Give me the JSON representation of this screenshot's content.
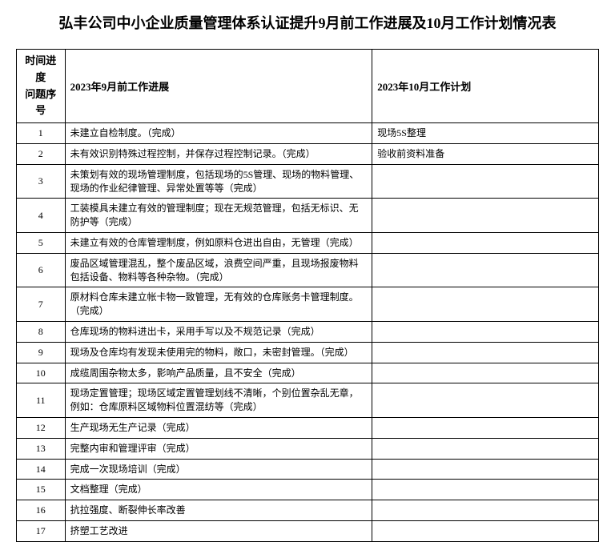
{
  "title": "弘丰公司中小企业质量管理体系认证提升9月前工作进展及10月工作计划情况表",
  "headers": {
    "index": "时间进度\n问题序号",
    "progress": "2023年9月前工作进展",
    "plan": "2023年10月工作计划"
  },
  "rows": [
    {
      "idx": "1",
      "progress": "未建立自检制度。（完成）",
      "plan": "现场5S整理"
    },
    {
      "idx": "2",
      "progress": "未有效识别特殊过程控制，并保存过程控制记录。（完成）",
      "plan": "验收前资料准备"
    },
    {
      "idx": "3",
      "progress": "未策划有效的现场管理制度，包括现场的5S管理、现场的物料管理、现场的作业纪律管理、异常处置等等（完成）",
      "plan": ""
    },
    {
      "idx": "4",
      "progress": "工装模具未建立有效的管理制度；现在无规范管理，包括无标识、无防护等（完成）",
      "plan": ""
    },
    {
      "idx": "5",
      "progress": "未建立有效的仓库管理制度，例如原料仓进出自由，无管理（完成）",
      "plan": ""
    },
    {
      "idx": "6",
      "progress": "废品区域管理混乱，整个废品区域，浪费空间严重，且现场报废物料包括设备、物料等各种杂物。（完成）",
      "plan": ""
    },
    {
      "idx": "7",
      "progress": "原材料仓库未建立帐卡物一致管理，无有效的仓库账务卡管理制度。（完成）",
      "plan": ""
    },
    {
      "idx": "8",
      "progress": "仓库现场的物料进出卡，采用手写以及不规范记录（完成）",
      "plan": ""
    },
    {
      "idx": "9",
      "progress": "现场及仓库均有发现未使用完的物料，敞口，未密封管理。（完成）",
      "plan": ""
    },
    {
      "idx": "10",
      "progress": "成缆周围杂物太多，影响产品质量，且不安全（完成）",
      "plan": ""
    },
    {
      "idx": "11",
      "progress": "现场定置管理；现场区域定置管理划线不清晰，个别位置杂乱无章，例如：仓库原料区域物料位置混纺等（完成）",
      "plan": ""
    },
    {
      "idx": "12",
      "progress": "生产现场无生产记录（完成）",
      "plan": ""
    },
    {
      "idx": "13",
      "progress": "完整内审和管理评审（完成）",
      "plan": ""
    },
    {
      "idx": "14",
      "progress": "完成一次现场培训（完成）",
      "plan": ""
    },
    {
      "idx": "15",
      "progress": "文档整理（完成）",
      "plan": ""
    },
    {
      "idx": "16",
      "progress": "抗拉强度、断裂伸长率改善",
      "plan": ""
    },
    {
      "idx": "17",
      "progress": "挤塑工艺改进",
      "plan": ""
    }
  ],
  "style": {
    "background_color": "#ffffff",
    "border_color": "#000000",
    "title_fontsize": 18,
    "body_fontsize": 12,
    "header_fontsize": 13,
    "col_widths": {
      "index": 60,
      "progress": 380,
      "plan": 280
    }
  }
}
